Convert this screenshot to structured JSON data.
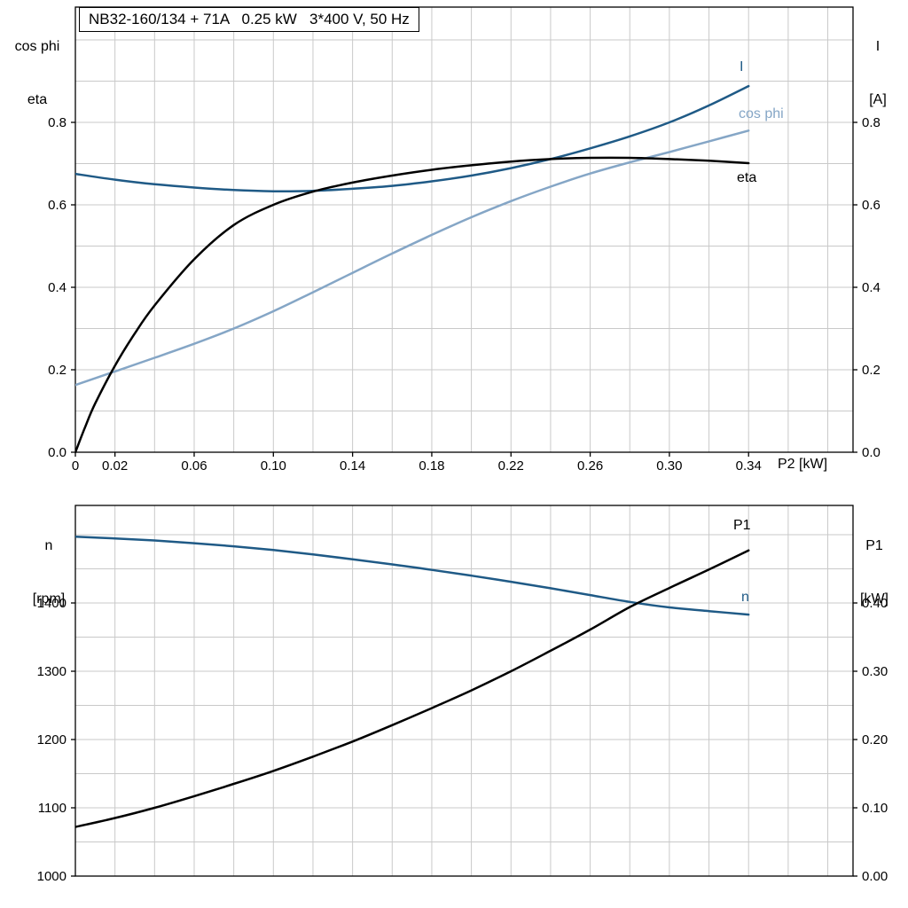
{
  "title_box": "NB32-160/134 + 71A   0.25 kW   3*400 V, 50 Hz",
  "colors": {
    "dark_blue": "#1f5a86",
    "light_blue": "#85a6c6",
    "black": "#000000",
    "grid": "#c9c9c9",
    "axis": "#000000"
  },
  "axes_labels": {
    "top_left_line1": "cos phi",
    "top_left_line2": "eta",
    "top_right_line1": "I",
    "top_right_line2": "[A]",
    "x_axis_label": "P2 [kW]",
    "bottom_left_line1": "n",
    "bottom_left_line2": "[rpm]",
    "bottom_right_line1": "P1",
    "bottom_right_line2": "[kW]"
  },
  "chart_data": [
    {
      "type": "line",
      "title": "NB32-160/134 + 71A  0.25 kW  3*400 V, 50 Hz",
      "xlabel": "P2 [kW]",
      "ylabel": "cos phi / eta (left axis), I [A] (right axis)",
      "xlim": [
        0,
        0.3926
      ],
      "ylim": [
        0,
        1.08
      ],
      "grid": true,
      "legend_position": "inline-right",
      "x_ticks": [
        0,
        0.02,
        0.06,
        0.1,
        0.14,
        0.18,
        0.22,
        0.26,
        0.3,
        0.34
      ],
      "x_tick_labels": [
        "0",
        "0.02",
        "0.06",
        "0.10",
        "0.14",
        "0.18",
        "0.22",
        "0.26",
        "0.30",
        "0.34"
      ],
      "x_gridlines": [
        0.02,
        0.04,
        0.06,
        0.08,
        0.1,
        0.12,
        0.14,
        0.16,
        0.18,
        0.2,
        0.22,
        0.24,
        0.26,
        0.28,
        0.3,
        0.32,
        0.34,
        0.36,
        0.38
      ],
      "y_gridlines": [
        0.1,
        0.2,
        0.3,
        0.4,
        0.5,
        0.6,
        0.7,
        0.8,
        0.9,
        1.0
      ],
      "y_ticks_left": [
        0,
        0.2,
        0.4,
        0.6,
        0.8
      ],
      "y_tick_labels_left": [
        "0.0",
        "0.2",
        "0.4",
        "0.6",
        "0.8"
      ],
      "y_ticks_right": [
        0,
        0.2,
        0.4,
        0.6,
        0.8
      ],
      "y_tick_labels_right": [
        "0.0",
        "0.2",
        "0.4",
        "0.6",
        "0.8"
      ],
      "series": [
        {
          "name": "I",
          "color": "dark_blue",
          "axis": "left",
          "x": [
            0,
            0.02,
            0.04,
            0.06,
            0.08,
            0.1,
            0.12,
            0.14,
            0.16,
            0.18,
            0.2,
            0.22,
            0.24,
            0.26,
            0.28,
            0.3,
            0.32,
            0.34
          ],
          "y": [
            0.675,
            0.661,
            0.65,
            0.642,
            0.636,
            0.633,
            0.634,
            0.639,
            0.646,
            0.657,
            0.671,
            0.689,
            0.711,
            0.737,
            0.766,
            0.8,
            0.841,
            0.888
          ]
        },
        {
          "name": "cos phi",
          "color": "light_blue",
          "axis": "left",
          "x": [
            0,
            0.02,
            0.04,
            0.06,
            0.08,
            0.1,
            0.12,
            0.14,
            0.16,
            0.18,
            0.2,
            0.22,
            0.24,
            0.26,
            0.28,
            0.3,
            0.32,
            0.34
          ],
          "y": [
            0.163,
            0.196,
            0.229,
            0.263,
            0.3,
            0.342,
            0.388,
            0.435,
            0.482,
            0.527,
            0.57,
            0.609,
            0.644,
            0.676,
            0.703,
            0.728,
            0.754,
            0.78
          ]
        },
        {
          "name": "eta",
          "color": "black",
          "axis": "left",
          "x": [
            0,
            0.005,
            0.01,
            0.02,
            0.03,
            0.04,
            0.06,
            0.08,
            0.1,
            0.12,
            0.14,
            0.16,
            0.18,
            0.2,
            0.22,
            0.24,
            0.26,
            0.28,
            0.3,
            0.32,
            0.34
          ],
          "y": [
            0,
            0.062,
            0.118,
            0.21,
            0.288,
            0.356,
            0.468,
            0.551,
            0.6,
            0.632,
            0.654,
            0.671,
            0.685,
            0.696,
            0.705,
            0.711,
            0.714,
            0.714,
            0.711,
            0.707,
            0.701
          ]
        }
      ]
    },
    {
      "type": "line",
      "title": "",
      "xlabel": "",
      "ylabel": "n [rpm] (left axis), P1 [kW] (right axis)",
      "xlim": [
        0,
        0.3926
      ],
      "ylim_left": [
        993,
        1543
      ],
      "ylim_right": [
        -0.005,
        0.543
      ],
      "grid": true,
      "legend_position": "inline-right",
      "x_ticks": [],
      "x_tick_labels": [],
      "x_gridlines": [
        0.02,
        0.04,
        0.06,
        0.08,
        0.1,
        0.12,
        0.14,
        0.16,
        0.18,
        0.2,
        0.22,
        0.24,
        0.26,
        0.28,
        0.3,
        0.32,
        0.34,
        0.36,
        0.38
      ],
      "y_gridlines": [
        1000,
        1050,
        1100,
        1150,
        1200,
        1250,
        1300,
        1350,
        1400,
        1450,
        1500
      ],
      "y_ticks_left": [
        1000,
        1100,
        1200,
        1300,
        1400
      ],
      "y_tick_labels_left": [
        "1000",
        "1100",
        "1200",
        "1300",
        "1400"
      ],
      "y_ticks_right": [
        0,
        0.1,
        0.2,
        0.3,
        0.4
      ],
      "y_tick_labels_right": [
        "0.00",
        "0.10",
        "0.20",
        "0.30",
        "0.40"
      ],
      "series": [
        {
          "name": "n",
          "color": "dark_blue",
          "axis": "left",
          "x": [
            0,
            0.02,
            0.04,
            0.06,
            0.08,
            0.1,
            0.12,
            0.14,
            0.16,
            0.18,
            0.2,
            0.22,
            0.24,
            0.26,
            0.28,
            0.3,
            0.32,
            0.34
          ],
          "y": [
            1497,
            1494.5,
            1491.5,
            1487.5,
            1483,
            1477.5,
            1471,
            1464,
            1456.5,
            1448.5,
            1440,
            1431,
            1421.5,
            1411.5,
            1401.5,
            1393.5,
            1388,
            1383
          ]
        },
        {
          "name": "P1",
          "color": "black",
          "axis": "right",
          "x": [
            0,
            0.02,
            0.04,
            0.06,
            0.08,
            0.1,
            0.12,
            0.14,
            0.16,
            0.18,
            0.2,
            0.22,
            0.24,
            0.26,
            0.28,
            0.3,
            0.32,
            0.34
          ],
          "y": [
            0.072,
            0.085,
            0.1,
            0.117,
            0.135,
            0.154,
            0.175,
            0.197,
            0.221,
            0.246,
            0.272,
            0.3,
            0.33,
            0.361,
            0.394,
            0.422,
            0.449,
            0.477
          ]
        }
      ]
    }
  ]
}
